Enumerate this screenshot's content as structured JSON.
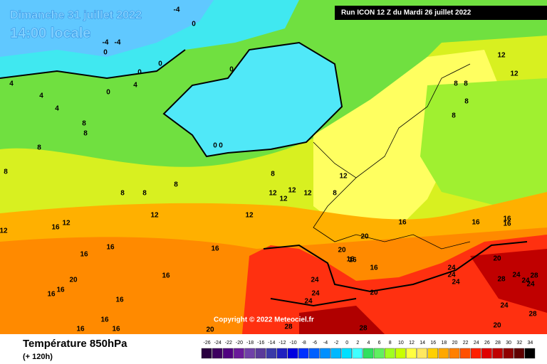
{
  "header": {
    "date": "Dimanche 31 juillet 2022",
    "time": "14:00 locale",
    "run": "Run ICON 12 Z du Mardi 26 juillet 2022"
  },
  "copyright": "Copyright © 2022 Meteociel.fr",
  "footer": {
    "title": "Température 850hPa",
    "lead": "(+ 120h)"
  },
  "scale": {
    "values": [
      -26,
      -24,
      -22,
      -20,
      -18,
      -16,
      -14,
      -12,
      -10,
      -8,
      -6,
      -4,
      -2,
      0,
      2,
      4,
      6,
      8,
      10,
      12,
      14,
      16,
      18,
      20,
      22,
      24,
      26,
      28,
      30,
      32,
      34
    ],
    "colors": [
      "#2a0040",
      "#3e0060",
      "#500080",
      "#6a1a9a",
      "#7040a8",
      "#5a3a9a",
      "#3a3aa8",
      "#2020c0",
      "#0000e0",
      "#0030ff",
      "#0060ff",
      "#0090ff",
      "#00b8ff",
      "#00e0ff",
      "#40ffff",
      "#30e060",
      "#60f060",
      "#a0ff20",
      "#c8ff00",
      "#ffff40",
      "#ffe860",
      "#ffd000",
      "#ffa800",
      "#ff8000",
      "#ff5000",
      "#ff2000",
      "#e00000",
      "#c00000",
      "#900000",
      "#600000",
      "#000000"
    ]
  },
  "contour_labels": [
    -4,
    0,
    -4,
    -4,
    0,
    0,
    0,
    0,
    4,
    4,
    4,
    4,
    0,
    8,
    8,
    8,
    8,
    0,
    0,
    8,
    12,
    12,
    12,
    12,
    12,
    8,
    8,
    8,
    8,
    12,
    12,
    16,
    12,
    12,
    16,
    16,
    16,
    16,
    20,
    16,
    16,
    16,
    16,
    16,
    16,
    20,
    24,
    24,
    24,
    28,
    28,
    20,
    16,
    16,
    20,
    16,
    16,
    16,
    16,
    20,
    24,
    24,
    24,
    28,
    24,
    28,
    24,
    24,
    24,
    28,
    20,
    12,
    12,
    8,
    8,
    8,
    8,
    20,
    16
  ]
}
